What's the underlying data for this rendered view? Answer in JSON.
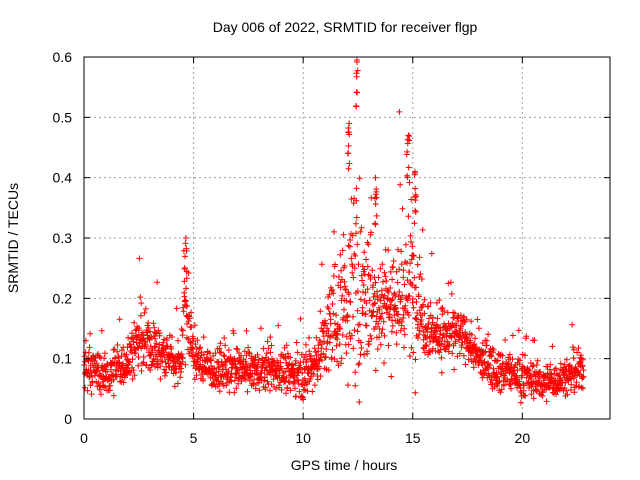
{
  "chart_data": {
    "type": "scatter",
    "title": "Day 006 of 2022, SRMTID for receiver flgp",
    "xlabel": "GPS time / hours",
    "ylabel": "SRMTID / TECUs",
    "xlim": [
      0,
      24
    ],
    "ylim": [
      0,
      0.6
    ],
    "x_ticks": [
      0,
      5,
      10,
      15,
      20
    ],
    "x_tick_labels": [
      "0",
      "5",
      "10",
      "15",
      "20"
    ],
    "y_ticks": [
      0,
      0.1,
      0.2,
      0.3,
      0.4,
      0.5,
      0.6
    ],
    "y_tick_labels": [
      "0",
      "0.1",
      "0.2",
      "0.3",
      "0.4",
      "0.5",
      "0.6"
    ],
    "grid": true,
    "marker": "+",
    "marker_color": "#ff0000",
    "series": [
      {
        "name": "SRMTID",
        "color": "#ff0000",
        "x_range": [
          0,
          22.8
        ],
        "n_points": 2000,
        "profile_hours": [
          0,
          1,
          2,
          2.5,
          3,
          3.5,
          4,
          4.4,
          4.6,
          4.8,
          5,
          5.5,
          6,
          7,
          8,
          9,
          10,
          10.5,
          11,
          11.5,
          12,
          12.4,
          12.8,
          13.5,
          14,
          14.5,
          15,
          15.5,
          16,
          17,
          17.5,
          18,
          18.5,
          19,
          20,
          21,
          22,
          22.8
        ],
        "profile_median": [
          0.09,
          0.07,
          0.1,
          0.13,
          0.12,
          0.11,
          0.1,
          0.09,
          0.2,
          0.15,
          0.1,
          0.09,
          0.08,
          0.08,
          0.08,
          0.08,
          0.07,
          0.09,
          0.13,
          0.17,
          0.2,
          0.22,
          0.2,
          0.19,
          0.2,
          0.2,
          0.22,
          0.17,
          0.14,
          0.14,
          0.13,
          0.1,
          0.09,
          0.08,
          0.07,
          0.06,
          0.07,
          0.08
        ],
        "profile_spread": [
          0.03,
          0.03,
          0.04,
          0.05,
          0.04,
          0.04,
          0.03,
          0.04,
          0.08,
          0.05,
          0.03,
          0.03,
          0.03,
          0.03,
          0.03,
          0.03,
          0.03,
          0.04,
          0.06,
          0.08,
          0.12,
          0.15,
          0.1,
          0.08,
          0.09,
          0.1,
          0.11,
          0.06,
          0.04,
          0.04,
          0.03,
          0.03,
          0.03,
          0.03,
          0.03,
          0.025,
          0.03,
          0.03
        ],
        "peaks": [
          {
            "x": 4.65,
            "y": 0.3
          },
          {
            "x": 12.45,
            "y": 0.595
          },
          {
            "x": 12.1,
            "y": 0.49
          },
          {
            "x": 14.8,
            "y": 0.47
          },
          {
            "x": 15.1,
            "y": 0.41
          },
          {
            "x": 13.3,
            "y": 0.4
          }
        ]
      }
    ]
  }
}
